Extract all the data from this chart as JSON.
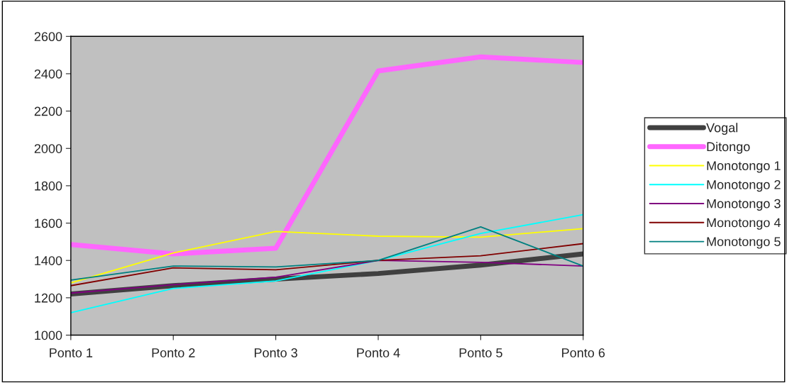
{
  "chart_data": {
    "type": "line",
    "categories": [
      "Ponto 1",
      "Ponto 2",
      "Ponto 3",
      "Ponto 4",
      "Ponto 5",
      "Ponto 6"
    ],
    "series": [
      {
        "name": "Vogal",
        "color": "#404040",
        "values": [
          1220,
          1265,
          1300,
          1330,
          1375,
          1435
        ]
      },
      {
        "name": "Ditongo",
        "color": "#ff66ff",
        "values": [
          1485,
          1435,
          1465,
          2415,
          2490,
          2460
        ]
      },
      {
        "name": "Monotongo 1",
        "color": "#ffff00",
        "values": [
          1280,
          1440,
          1555,
          1530,
          1525,
          1570
        ]
      },
      {
        "name": "Monotongo 2",
        "color": "#00ffff",
        "values": [
          1120,
          1250,
          1290,
          1400,
          1545,
          1645
        ]
      },
      {
        "name": "Monotongo 3",
        "color": "#800080",
        "values": [
          1225,
          1270,
          1310,
          1400,
          1390,
          1370
        ]
      },
      {
        "name": "Monotongo 4",
        "color": "#800000",
        "values": [
          1265,
          1360,
          1350,
          1400,
          1425,
          1490
        ]
      },
      {
        "name": "Monotongo 5",
        "color": "#008080",
        "values": [
          1295,
          1370,
          1365,
          1400,
          1580,
          1370
        ]
      }
    ],
    "ylim": [
      1000,
      2600
    ],
    "yticks": [
      1000,
      1200,
      1400,
      1600,
      1800,
      2000,
      2200,
      2400,
      2600
    ],
    "grid": false,
    "legend": "right",
    "marker": "none",
    "line_style": "solid"
  }
}
